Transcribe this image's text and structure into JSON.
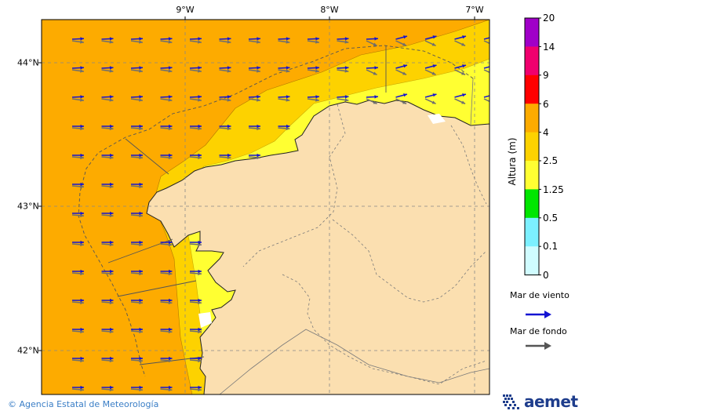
{
  "map": {
    "lon_ticks": [
      "9°W",
      "8°W",
      "7°W"
    ],
    "lat_ticks": [
      "44°N",
      "43°N",
      "42°N"
    ],
    "colors": {
      "land": "#fbdfb0",
      "sea_4_6": "#fdab00",
      "sea_2_5_4": "#fdd200",
      "sea_1_25_2_5": "#ffff32",
      "wind_sea_arrow": "#1414d2",
      "swell_arrow": "#6e6e6e"
    }
  },
  "colorbar": {
    "title": "Altura (m)",
    "levels": [
      "20",
      "14",
      "9",
      "6",
      "4",
      "2.5",
      "1.25",
      "0.5",
      "0.1",
      "0"
    ],
    "colors": [
      "#a000c8",
      "#f0006e",
      "#ff0000",
      "#fdab00",
      "#fdd200",
      "#ffff32",
      "#00e600",
      "#7cf0ff",
      "#d0fcff"
    ]
  },
  "legend": {
    "wind_sea_label": "Mar de viento",
    "swell_label": "Mar de fondo",
    "wind_sea_arrow_icon": "blue-arrow-right",
    "swell_arrow_icon": "gray-arrow-right"
  },
  "footer": {
    "copyright_symbol": "©",
    "agency": "Agencia Estatal de Meteorología",
    "logo_text": "aemet"
  }
}
